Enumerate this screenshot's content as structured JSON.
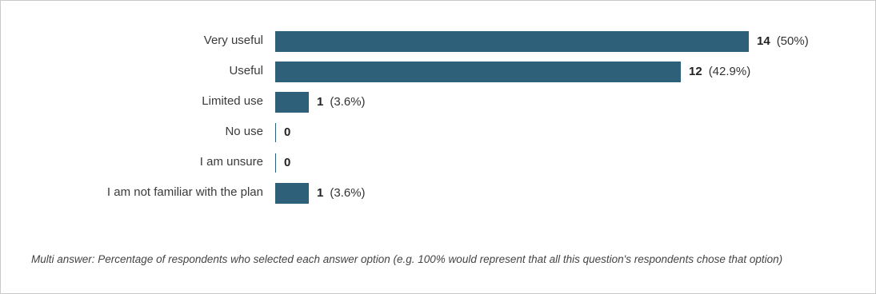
{
  "chart_data": {
    "type": "bar",
    "orientation": "horizontal",
    "categories": [
      "Very useful",
      "Useful",
      "Limited use",
      "No use",
      "I am unsure",
      "I am not familiar with the plan"
    ],
    "values": [
      14,
      12,
      1,
      0,
      0,
      1
    ],
    "percent_labels": [
      "(50%)",
      "(42.9%)",
      "(3.6%)",
      "",
      "",
      "(3.6%)"
    ],
    "bar_color": "#2e6079",
    "xlim": [
      0,
      14
    ],
    "grid": false,
    "legend": "none"
  },
  "footnote": "Multi answer: Percentage of respondents who selected each answer option (e.g. 100% would represent that all this question's respondents chose that option)"
}
